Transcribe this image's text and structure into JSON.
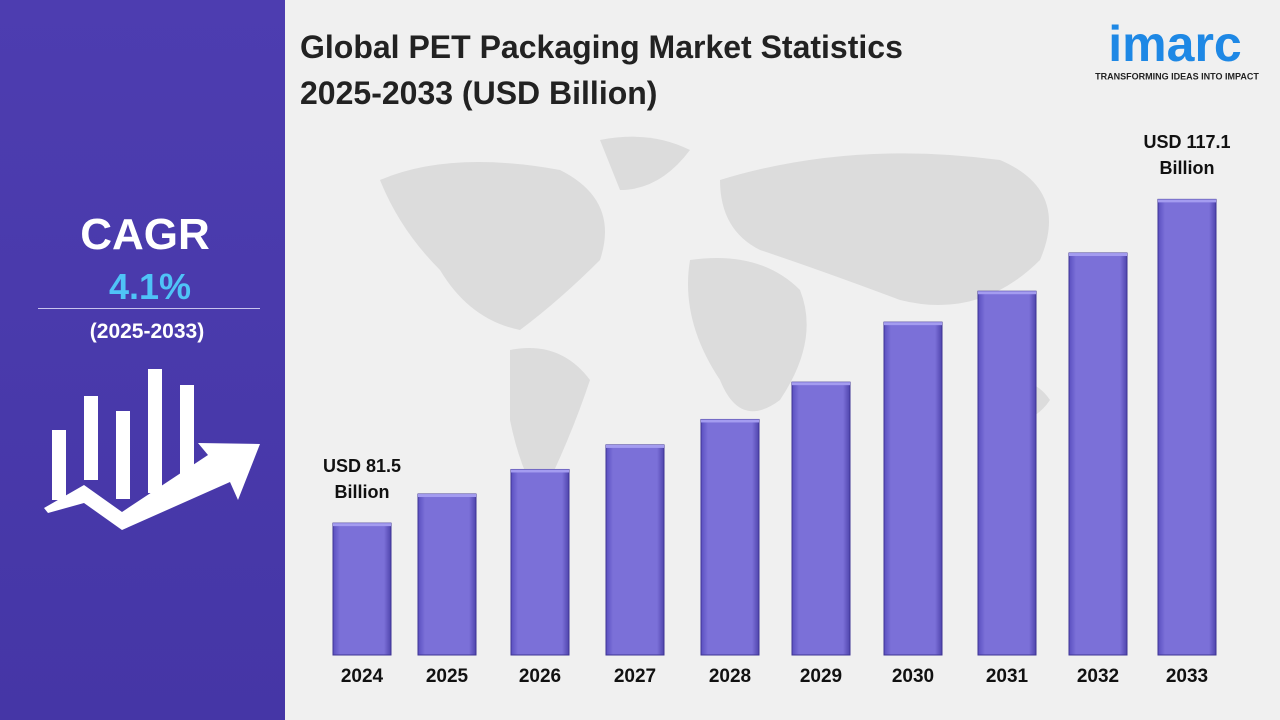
{
  "chart_data": {
    "type": "bar",
    "title": "Global PET Packaging Market Statistics 2025-2033 (USD Billion)",
    "categories": [
      "2024",
      "2025",
      "2026",
      "2027",
      "2028",
      "2029",
      "2030",
      "2031",
      "2032",
      "2033"
    ],
    "values": [
      81.5,
      84.7,
      87.4,
      90.1,
      92.9,
      97.0,
      103.6,
      107.0,
      111.2,
      117.1
    ],
    "value_labels": [
      "USD 81.5 Billion",
      null,
      null,
      null,
      null,
      null,
      null,
      null,
      null,
      "USD 117.1 Billion"
    ],
    "color": "#7b70d8",
    "ylim": [
      67,
      120
    ]
  },
  "sidebar": {
    "label": "CAGR",
    "rate": "4.1%",
    "period": "(2025-2033)"
  },
  "logo": {
    "name": "imarc",
    "tagline": "TRANSFORMING IDEAS INTO IMPACT"
  }
}
